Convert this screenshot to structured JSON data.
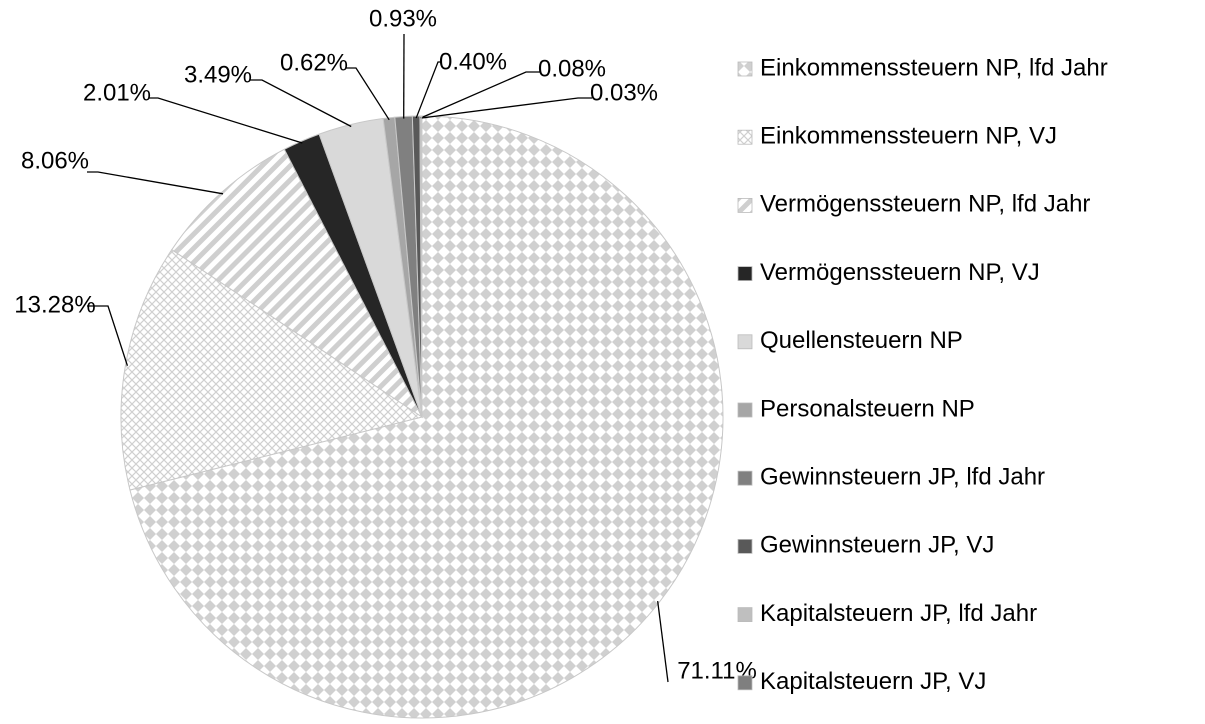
{
  "chart_data": {
    "type": "pie",
    "categories": [
      "Einkommenssteuern NP, lfd Jahr",
      "Einkommenssteuern NP, VJ",
      "Vermögenssteuern NP, lfd Jahr",
      "Vermögenssteuern NP, VJ",
      "Quellensteuern NP",
      "Personalsteuern NP",
      "Gewinnsteuern JP, lfd Jahr",
      "Gewinnsteuern JP, VJ",
      "Kapitalsteuern JP, lfd Jahr",
      "Kapitalsteuern JP, VJ"
    ],
    "values": [
      71.11,
      13.28,
      8.06,
      2.01,
      3.49,
      0.62,
      0.93,
      0.4,
      0.08,
      0.03
    ],
    "value_labels": [
      "71.11%",
      "13.28%",
      "8.06%",
      "2.01%",
      "3.49%",
      "0.62%",
      "0.93%",
      "0.40%",
      "0.08%",
      "0.03%"
    ],
    "colors": [
      "#d0d0d0",
      "#d0d0d0",
      "#cfcfcf",
      "#262626",
      "#d9d9d9",
      "#a6a6a6",
      "#808080",
      "#595959",
      "#bfbfbf",
      "#7f7f7f"
    ],
    "patterns": [
      "diamond",
      "crosshatch",
      "stripes",
      "solid",
      "solid",
      "solid",
      "solid",
      "solid",
      "solid",
      "solid"
    ],
    "legend": "right"
  }
}
